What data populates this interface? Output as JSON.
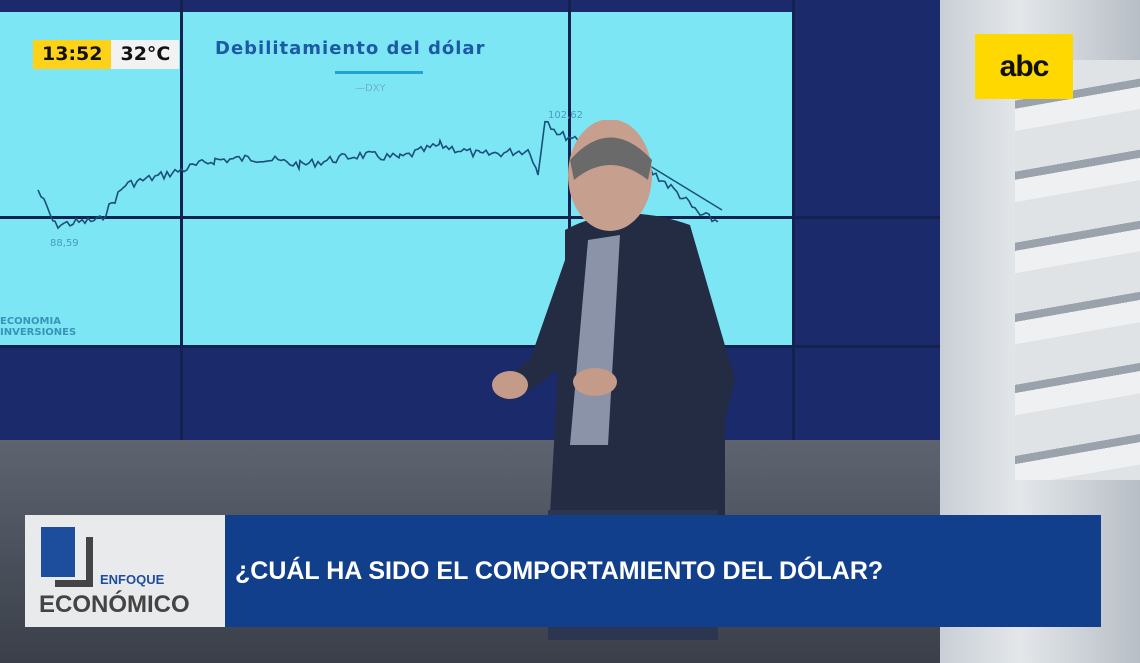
{
  "overlay": {
    "time": "13:52",
    "temperature": "32°C"
  },
  "channel_logo": "abc",
  "screen": {
    "title": "Debilitamiento del dólar",
    "legend": "—DXY",
    "peak_label": "102,62",
    "low_label": "88,59",
    "footer": [
      "ECONOMIA",
      "INVERSIONES"
    ]
  },
  "lower_third": {
    "show_logo": {
      "line1": "ENFOQUE",
      "line2": "ECONÓMICO"
    },
    "headline": "¿CUÁL HA SIDO EL COMPORTAMIENTO DEL DÓLAR?"
  },
  "colors": {
    "screen": "#7de6f4",
    "banner": "#123f8c",
    "clock": "#ffd21a",
    "logo": "#ffd800"
  }
}
